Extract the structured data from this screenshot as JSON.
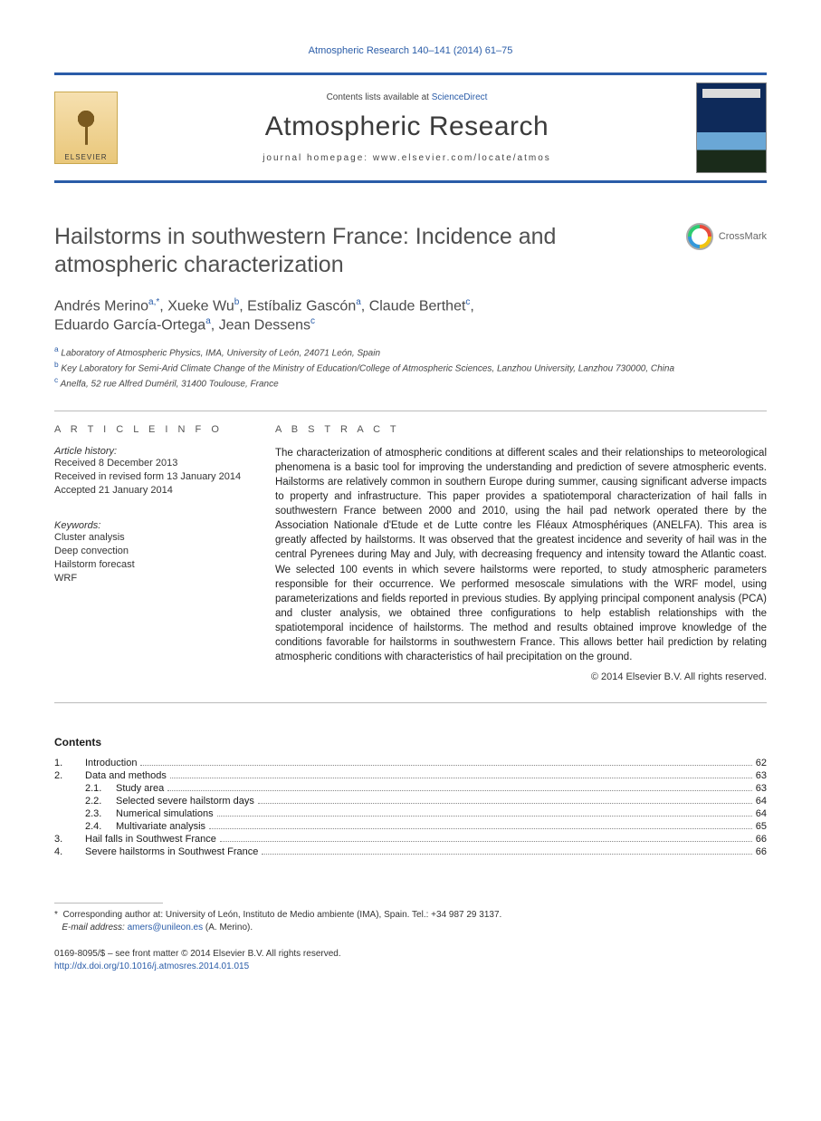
{
  "running_head": "Atmospheric Research 140–141 (2014) 61–75",
  "masthead": {
    "contents_prefix": "Contents lists available at ",
    "contents_link": "ScienceDirect",
    "journal": "Atmospheric Research",
    "homepage_prefix": "journal homepage: ",
    "homepage_url": "www.elsevier.com/locate/atmos",
    "publisher_word": "ELSEVIER"
  },
  "crossmark_label": "CrossMark",
  "title": "Hailstorms in southwestern France: Incidence and atmospheric characterization",
  "authors_html_parts": {
    "a1": "Andrés Merino",
    "a1_aff": "a,",
    "a1_corr": "*",
    "sep1": ", ",
    "a2": "Xueke Wu",
    "a2_aff": "b",
    "sep2": ", ",
    "a3": "Estíbaliz Gascón",
    "a3_aff": "a",
    "sep3": ", ",
    "a4": "Claude Berthet",
    "a4_aff": "c",
    "sep4": ", ",
    "a5": "Eduardo García-Ortega",
    "a5_aff": "a",
    "sep5": ", ",
    "a6": "Jean Dessens",
    "a6_aff": "c"
  },
  "affiliations": {
    "a": "Laboratory of Atmospheric Physics, IMA, University of León, 24071 León, Spain",
    "b": "Key Laboratory for Semi-Arid Climate Change of the Ministry of Education/College of Atmospheric Sciences, Lanzhou University, Lanzhou 730000, China",
    "c": "Anelfa, 52 rue Alfred Duméril, 31400 Toulouse, France",
    "sup_a": "a",
    "sup_b": "b",
    "sup_c": "c"
  },
  "info": {
    "head": "A R T I C L E   I N F O",
    "history_label": "Article history:",
    "received": "Received 8 December 2013",
    "revised": "Received in revised form 13 January 2014",
    "accepted": "Accepted 21 January 2014",
    "keywords_label": "Keywords:",
    "kw1": "Cluster analysis",
    "kw2": "Deep convection",
    "kw3": "Hailstorm forecast",
    "kw4": "WRF"
  },
  "abstract": {
    "head": "A B S T R A C T",
    "text": "The characterization of atmospheric conditions at different scales and their relationships to meteorological phenomena is a basic tool for improving the understanding and prediction of severe atmospheric events. Hailstorms are relatively common in southern Europe during summer, causing significant adverse impacts to property and infrastructure. This paper provides a spatiotemporal characterization of hail falls in southwestern France between 2000 and 2010, using the hail pad network operated there by the Association Nationale d'Etude et de Lutte contre les Fléaux Atmosphériques (ANELFA). This area is greatly affected by hailstorms. It was observed that the greatest incidence and severity of hail was in the central Pyrenees during May and July, with decreasing frequency and intensity toward the Atlantic coast. We selected 100 events in which severe hailstorms were reported, to study atmospheric parameters responsible for their occurrence. We performed mesoscale simulations with the WRF model, using parameterizations and fields reported in previous studies. By applying principal component analysis (PCA) and cluster analysis, we obtained three configurations to help establish relationships with the spatiotemporal incidence of hailstorms. The method and results obtained improve knowledge of the conditions favorable for hailstorms in southwestern France. This allows better hail prediction by relating atmospheric conditions with characteristics of hail precipitation on the ground.",
    "copyright": "© 2014 Elsevier B.V. All rights reserved."
  },
  "contents": {
    "head": "Contents",
    "items": [
      {
        "num": "1.",
        "label": "Introduction",
        "page": "62",
        "level": 0
      },
      {
        "num": "2.",
        "label": "Data and methods",
        "page": "63",
        "level": 0
      },
      {
        "num": "2.1.",
        "label": "Study area",
        "page": "63",
        "level": 1
      },
      {
        "num": "2.2.",
        "label": "Selected severe hailstorm days",
        "page": "64",
        "level": 1
      },
      {
        "num": "2.3.",
        "label": "Numerical simulations",
        "page": "64",
        "level": 1
      },
      {
        "num": "2.4.",
        "label": "Multivariate analysis",
        "page": "65",
        "level": 1
      },
      {
        "num": "3.",
        "label": "Hail falls in Southwest France",
        "page": "66",
        "level": 0
      },
      {
        "num": "4.",
        "label": "Severe hailstorms in Southwest France",
        "page": "66",
        "level": 0
      }
    ]
  },
  "footnote": {
    "corr_marker": "*",
    "corr_text": "Corresponding author at: University of León, Instituto de Medio ambiente (IMA), Spain. Tel.: +34 987 29 3137.",
    "email_label": "E-mail address: ",
    "email": "amers@unileon.es",
    "email_paren": " (A. Merino)."
  },
  "footer": {
    "line1": "0169-8095/$ – see front matter © 2014 Elsevier B.V. All rights reserved.",
    "doi": "http://dx.doi.org/10.1016/j.atmosres.2014.01.015"
  },
  "colors": {
    "link": "#2a5ca8",
    "rule": "#bbbbbb",
    "text": "#1a1a1a"
  }
}
